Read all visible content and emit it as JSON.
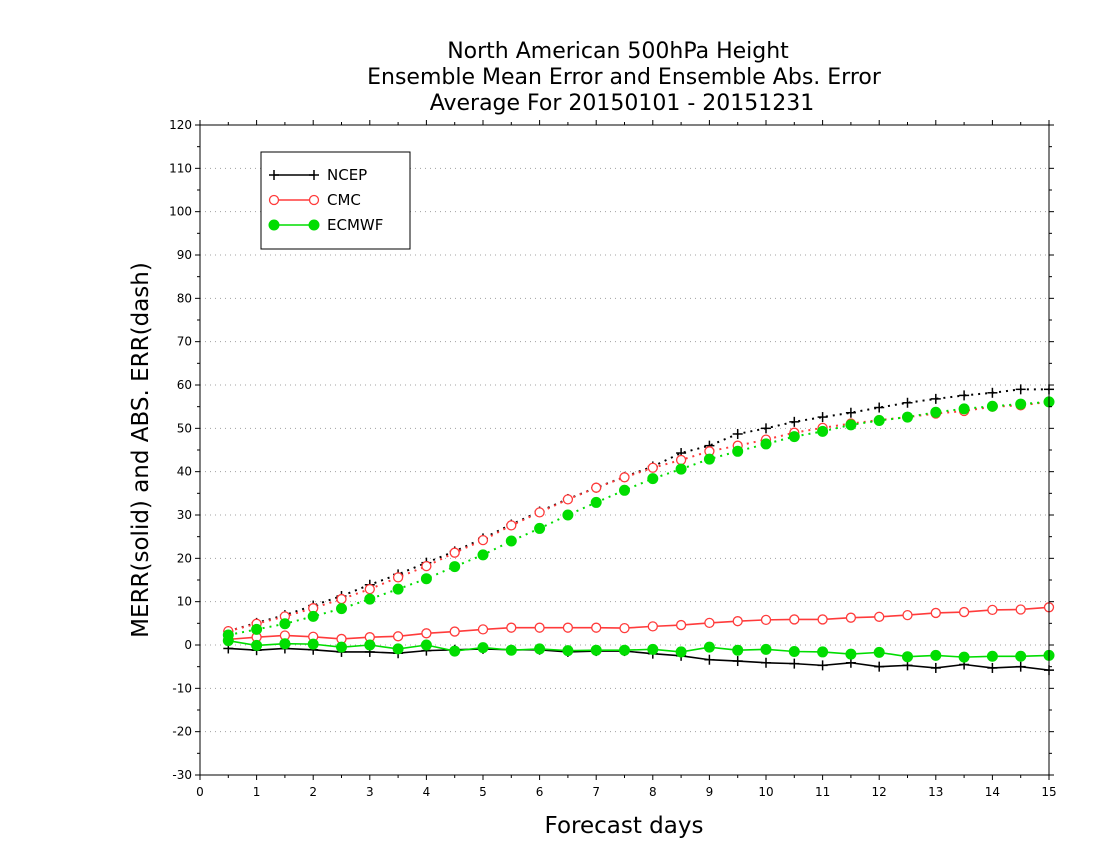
{
  "chart_data": {
    "type": "line",
    "title": [
      "North American 500hPa Height",
      "Ensemble Mean Error and Ensemble Abs. Error",
      "Average For 20150101 - 20151231"
    ],
    "xlabel": "Forecast days",
    "ylabel": "MERR(solid) and ABS. ERR(dash)",
    "xlim": [
      0,
      15
    ],
    "ylim": [
      -30,
      120
    ],
    "xticks": [
      "0",
      "1",
      "2",
      "3",
      "4",
      "5",
      "6",
      "7",
      "8",
      "9",
      "10",
      "11",
      "12",
      "13",
      "14",
      "15"
    ],
    "yticks": [
      "120",
      "110",
      "100",
      "90",
      "80",
      "70",
      "60",
      "50",
      "40",
      "30",
      "20",
      "10",
      "0",
      "-10",
      "-20",
      "-30"
    ],
    "grid": "horizontal dotted",
    "legend_position": "top-left",
    "x": [
      0.5,
      1,
      1.5,
      2,
      2.5,
      3,
      3.5,
      4,
      4.5,
      5,
      5.5,
      6,
      6.5,
      7,
      7.5,
      8,
      8.5,
      9,
      9.5,
      10,
      10.5,
      11,
      11.5,
      12,
      12.5,
      13,
      13.5,
      14,
      14.5,
      15
    ],
    "series": [
      {
        "name": "NCEP",
        "color": "#000000",
        "marker": "plus",
        "merr": [
          -0.8,
          -1.2,
          -0.8,
          -1.1,
          -1.6,
          -1.6,
          -1.9,
          -1.3,
          -1.1,
          -0.9,
          -1.1,
          -1.1,
          -1.6,
          -1.4,
          -1.4,
          -2.0,
          -2.5,
          -3.4,
          -3.7,
          -4.1,
          -4.3,
          -4.7,
          -4.1,
          -5.0,
          -4.7,
          -5.3,
          -4.5,
          -5.3,
          -5.0,
          -5.8
        ],
        "abs_err": [
          3.2,
          5.1,
          6.9,
          9.1,
          11.3,
          13.9,
          16.3,
          19.0,
          21.6,
          24.6,
          27.8,
          30.8,
          33.7,
          36.3,
          38.8,
          41.2,
          44.3,
          46.0,
          48.7,
          50.0,
          51.5,
          52.6,
          53.6,
          54.8,
          55.9,
          56.8,
          57.6,
          58.2,
          59.0,
          59.0
        ]
      },
      {
        "name": "CMC",
        "color": "#ff3b3b",
        "marker": "open-circle",
        "merr": [
          1.3,
          1.8,
          2.2,
          1.9,
          1.4,
          1.8,
          2.0,
          2.7,
          3.1,
          3.6,
          4.0,
          4.0,
          4.0,
          4.0,
          3.9,
          4.3,
          4.6,
          5.1,
          5.5,
          5.8,
          5.9,
          5.9,
          6.3,
          6.5,
          6.9,
          7.4,
          7.6,
          8.1,
          8.2,
          8.7
        ],
        "abs_err": [
          3.2,
          4.9,
          6.6,
          8.5,
          10.6,
          12.9,
          15.6,
          18.2,
          21.3,
          24.2,
          27.6,
          30.6,
          33.6,
          36.3,
          38.7,
          40.9,
          42.7,
          44.7,
          46.0,
          47.4,
          49.0,
          50.1,
          51.1,
          51.9,
          52.6,
          53.4,
          54.0,
          55.0,
          55.3,
          56.1
        ]
      },
      {
        "name": "ECMWF",
        "color": "#00dd00",
        "marker": "filled-circle",
        "merr": [
          1.0,
          -0.1,
          0.3,
          0.2,
          -0.5,
          0.0,
          -0.9,
          0.0,
          -1.4,
          -0.6,
          -1.2,
          -0.9,
          -1.3,
          -1.2,
          -1.2,
          -1.0,
          -1.6,
          -0.5,
          -1.2,
          -1.0,
          -1.5,
          -1.6,
          -2.1,
          -1.7,
          -2.7,
          -2.4,
          -2.8,
          -2.6,
          -2.6,
          -2.4
        ],
        "abs_err": [
          2.3,
          3.6,
          4.9,
          6.6,
          8.4,
          10.6,
          12.9,
          15.3,
          18.1,
          20.8,
          24.0,
          26.9,
          30.0,
          32.9,
          35.7,
          38.4,
          40.6,
          42.9,
          44.7,
          46.4,
          48.1,
          49.3,
          50.8,
          51.8,
          52.6,
          53.7,
          54.5,
          55.1,
          55.6,
          56.1
        ]
      }
    ]
  }
}
